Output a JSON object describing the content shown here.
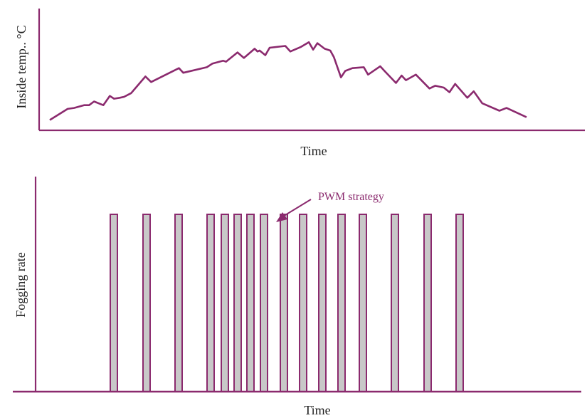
{
  "chart_data": [
    {
      "type": "line",
      "xlabel": "Time",
      "ylabel": "Inside temp.. °C",
      "color": "#8b2a6e",
      "series": [
        {
          "x": [
            0,
            25,
            34,
            48,
            55,
            62,
            75,
            84,
            90,
            98,
            104,
            114,
            134,
            142,
            181,
            187,
            220,
            228,
            243,
            247,
            263,
            272,
            287,
            291,
            294,
            302,
            308,
            330,
            337,
            352,
            363,
            369,
            375,
            385,
            393,
            398,
            408,
            414,
            424,
            440,
            446,
            463,
            469,
            485,
            493,
            499,
            513,
            532,
            540,
            552,
            560,
            568,
            585,
            594,
            606,
            630,
            640,
            668
          ],
          "y": [
            0.05,
            0.17,
            0.18,
            0.21,
            0.21,
            0.25,
            0.21,
            0.31,
            0.28,
            0.29,
            0.3,
            0.34,
            0.52,
            0.46,
            0.61,
            0.56,
            0.62,
            0.66,
            0.69,
            0.68,
            0.78,
            0.72,
            0.82,
            0.79,
            0.8,
            0.75,
            0.83,
            0.85,
            0.79,
            0.84,
            0.89,
            0.81,
            0.88,
            0.82,
            0.8,
            0.73,
            0.51,
            0.58,
            0.61,
            0.62,
            0.54,
            0.63,
            0.58,
            0.45,
            0.53,
            0.48,
            0.54,
            0.39,
            0.42,
            0.4,
            0.35,
            0.44,
            0.29,
            0.36,
            0.23,
            0.15,
            0.18,
            0.08
          ]
        }
      ]
    },
    {
      "type": "bar",
      "xlabel": "Time",
      "ylabel": "Fogging rate",
      "color": "#8b2a6e",
      "bar_fill": "#c8c8c8",
      "pulse_level": 1,
      "pulses": [
        {
          "start": 0,
          "end": 10
        },
        {
          "start": 46,
          "end": 56
        },
        {
          "start": 91,
          "end": 101
        },
        {
          "start": 136,
          "end": 146
        },
        {
          "start": 156,
          "end": 166
        },
        {
          "start": 174,
          "end": 184
        },
        {
          "start": 192,
          "end": 202
        },
        {
          "start": 211,
          "end": 221
        },
        {
          "start": 239,
          "end": 249
        },
        {
          "start": 266,
          "end": 276
        },
        {
          "start": 293,
          "end": 303
        },
        {
          "start": 320,
          "end": 330
        },
        {
          "start": 350,
          "end": 360
        },
        {
          "start": 395,
          "end": 405
        },
        {
          "start": 441,
          "end": 451
        },
        {
          "start": 486,
          "end": 496
        }
      ],
      "annotations": [
        {
          "text": "PWM strategy",
          "points_to_pulse": 9
        }
      ]
    }
  ]
}
